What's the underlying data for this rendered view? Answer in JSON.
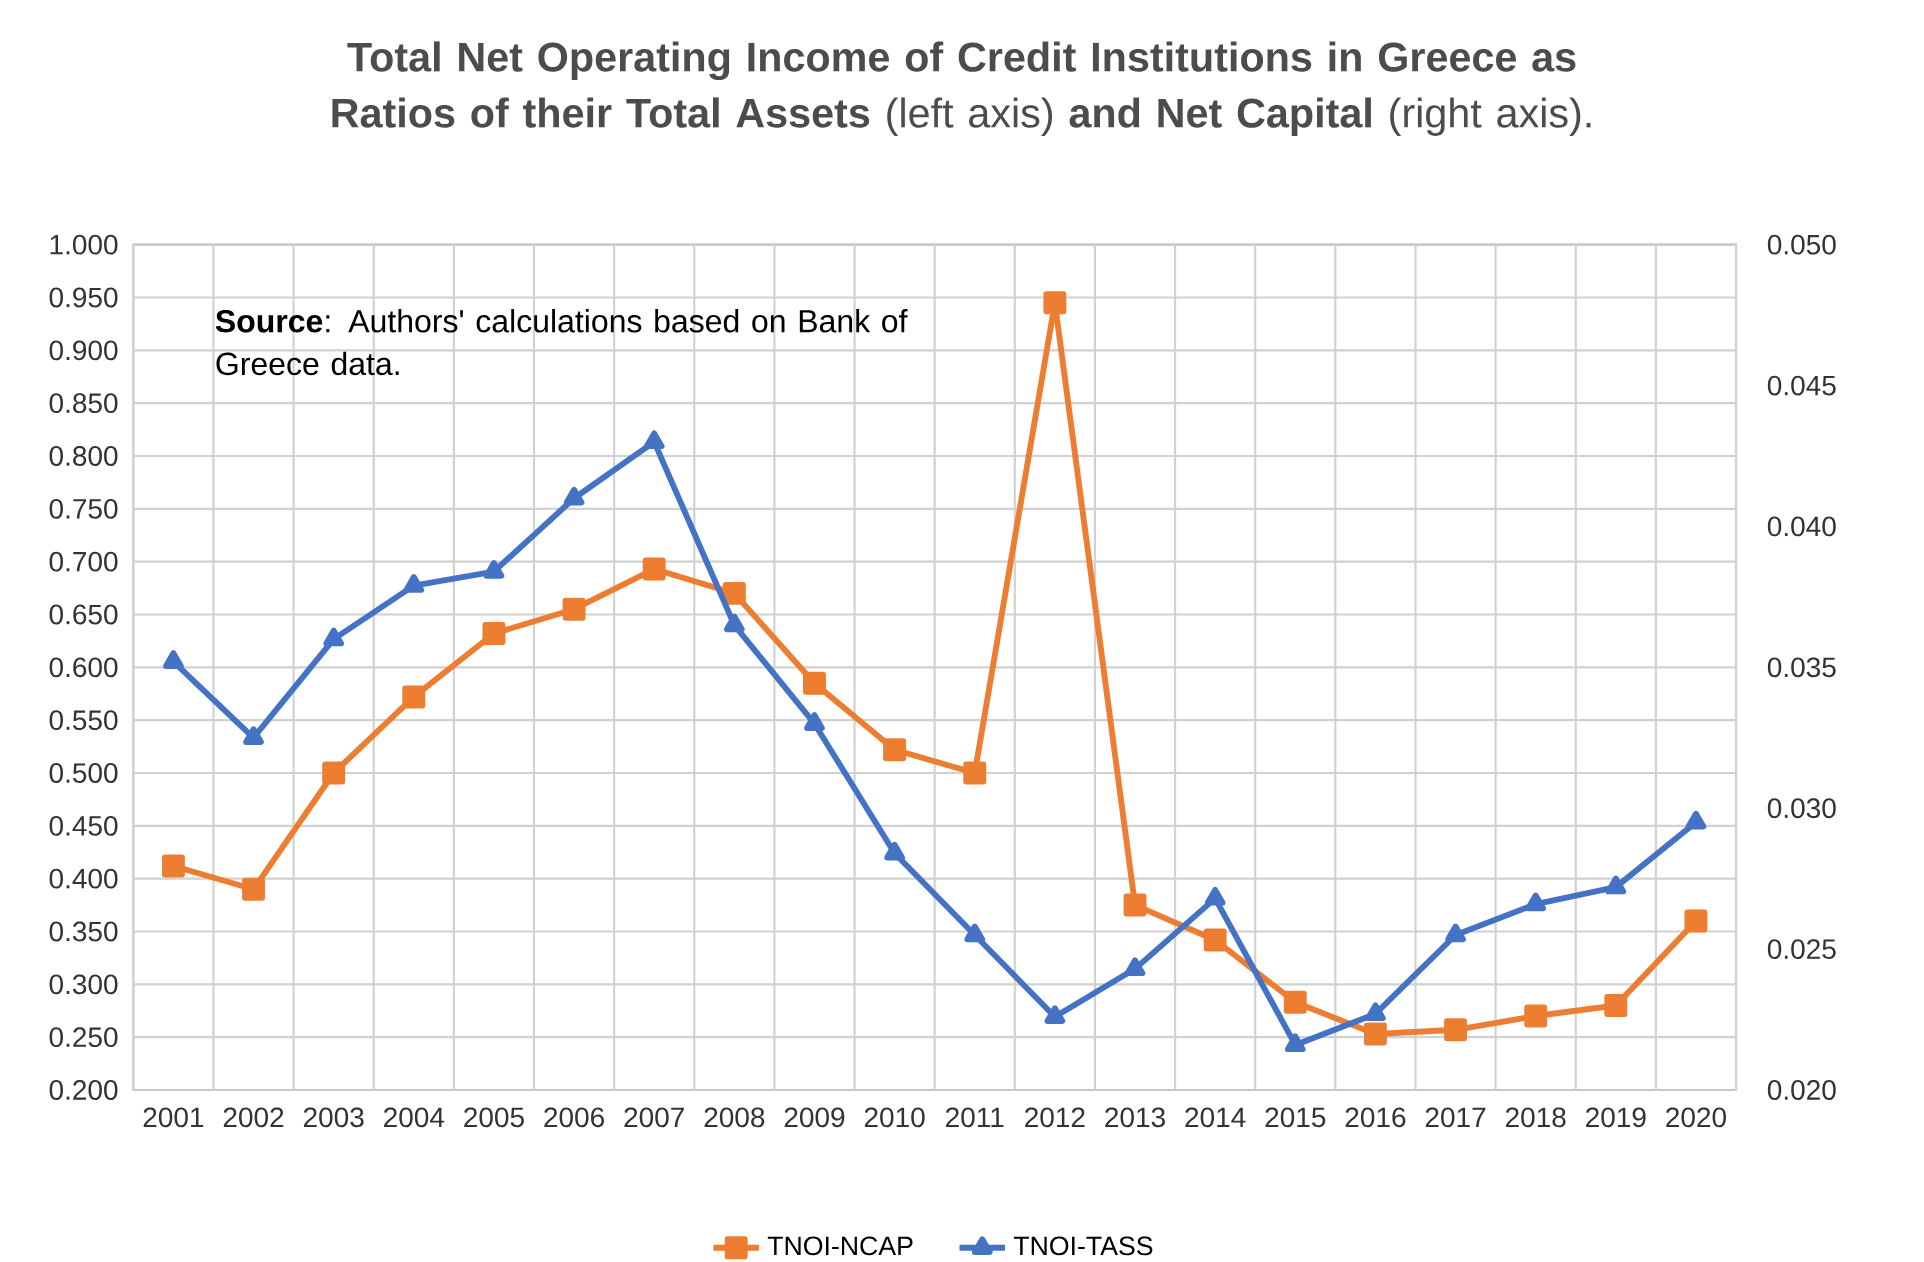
{
  "chart_data": {
    "type": "line",
    "title": "**Total Net Operating Income of Credit Institutions in Greece as Ratios of their Total Assets** (left axis) **and Net Capital** (right axis).",
    "annotations": [
      "**Source**: Authors' calculations based on Bank of Greece data."
    ],
    "categories": [
      "2001",
      "2002",
      "2003",
      "2004",
      "2005",
      "2006",
      "2007",
      "2008",
      "2009",
      "2010",
      "2011",
      "2012",
      "2013",
      "2014",
      "2015",
      "2016",
      "2017",
      "2018",
      "2019",
      "2020"
    ],
    "series": [
      {
        "name": "TNOI-NCAP",
        "color": "#ed7d31",
        "marker": "square",
        "values": [
          0.412,
          0.39,
          0.5,
          0.572,
          0.632,
          0.655,
          0.693,
          0.67,
          0.585,
          0.522,
          0.5,
          0.945,
          0.375,
          0.342,
          0.283,
          0.253,
          0.257,
          0.27,
          0.28,
          0.36
        ]
      },
      {
        "name": "TNOI-TASS",
        "color": "#4472c4",
        "marker": "triangle",
        "axis": "y2",
        "values": [
          0.0352,
          0.0325,
          0.036,
          0.0379,
          0.0384,
          0.041,
          0.043,
          0.0365,
          0.033,
          0.0284,
          0.0255,
          0.0226,
          0.0243,
          0.0268,
          0.0216,
          0.0227,
          0.0255,
          0.0266,
          0.0272,
          0.0295
        ]
      }
    ],
    "ylim": [
      0.2,
      1.0
    ],
    "yticks": [
      {
        "value": 0.2,
        "label": "0.200"
      },
      {
        "value": 0.25,
        "label": "0.250"
      },
      {
        "value": 0.3,
        "label": "0.300"
      },
      {
        "value": 0.35,
        "label": "0.350"
      },
      {
        "value": 0.4,
        "label": "0.400"
      },
      {
        "value": 0.45,
        "label": "0.450"
      },
      {
        "value": 0.5,
        "label": "0.500"
      },
      {
        "value": 0.55,
        "label": "0.550"
      },
      {
        "value": 0.6,
        "label": "0.600"
      },
      {
        "value": 0.65,
        "label": "0.650"
      },
      {
        "value": 0.7,
        "label": "0.700"
      },
      {
        "value": 0.75,
        "label": "0.750"
      },
      {
        "value": 0.8,
        "label": "0.800"
      },
      {
        "value": 0.85,
        "label": "0.850"
      },
      {
        "value": 0.9,
        "label": "0.900"
      },
      {
        "value": 0.95,
        "label": "0.950"
      },
      {
        "value": 1.0,
        "label": "1.000"
      }
    ],
    "y2lim": [
      0.02,
      0.05
    ],
    "y2ticks": [
      {
        "value": 0.02,
        "label": "0.020"
      },
      {
        "value": 0.025,
        "label": "0.025"
      },
      {
        "value": 0.03,
        "label": "0.030"
      },
      {
        "value": 0.035,
        "label": "0.035"
      },
      {
        "value": 0.04,
        "label": "0.040"
      },
      {
        "value": 0.045,
        "label": "0.045"
      },
      {
        "value": 0.05,
        "label": "0.050"
      }
    ],
    "grid": true,
    "legend": "bottom"
  }
}
